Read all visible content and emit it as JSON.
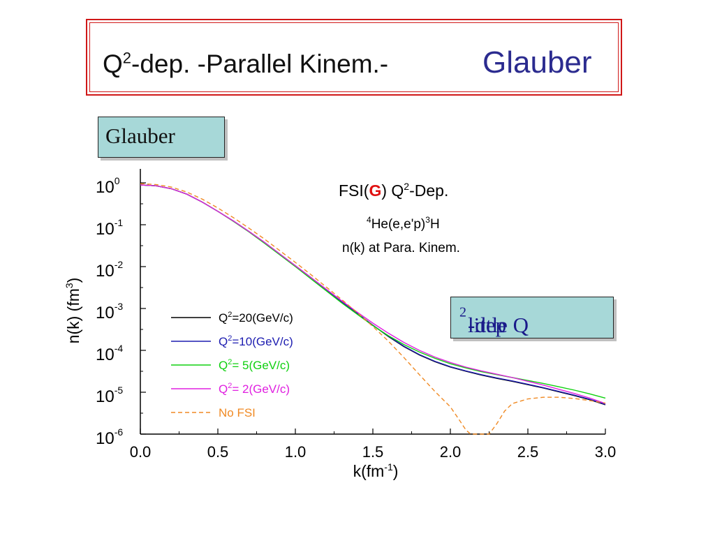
{
  "slide": {
    "title_prefix": "Q",
    "title_sup": "2",
    "title_rest": "-dep. -Parallel Kinem.-",
    "title_accent": "Glauber",
    "glauber_label": "Glauber",
    "qdep_label_pre": "little Q",
    "qdep_label_sup": "2",
    "qdep_label_post": "-dep",
    "colors": {
      "frame": "#d01818",
      "accent_text": "#2b2b8f",
      "label_fill": "#a7d8d8"
    }
  },
  "chart_data": {
    "type": "line",
    "annotation_line1_pre": "FSI(",
    "annotation_line1_G": "G",
    "annotation_line1_post_a": ") Q",
    "annotation_line1_sup": "2",
    "annotation_line1_post_b": "-Dep.",
    "annotation_line2_sup_a": "4",
    "annotation_line2_a": "He(e,e'p)",
    "annotation_line2_sup_b": "3",
    "annotation_line2_b": "H",
    "annotation_line3": "n(k) at Para. Kinem.",
    "xlabel_main": "k(fm",
    "xlabel_sup": "-1",
    "xlabel_close": ")",
    "ylabel_main": "n(k) (fm",
    "ylabel_sup": "3",
    "ylabel_close": ")",
    "xlim": [
      0,
      3
    ],
    "ylim_log10": [
      -6,
      0
    ],
    "y_scale": "log",
    "x_ticks": [
      "0.0",
      "0.5",
      "1.0",
      "1.5",
      "2.0",
      "2.5",
      "3.0"
    ],
    "y_ticks": [
      {
        "base": "10",
        "exp": "0"
      },
      {
        "base": "10",
        "exp": "-1"
      },
      {
        "base": "10",
        "exp": "-2"
      },
      {
        "base": "10",
        "exp": "-3"
      },
      {
        "base": "10",
        "exp": "-4"
      },
      {
        "base": "10",
        "exp": "-5"
      },
      {
        "base": "10",
        "exp": "-6"
      }
    ],
    "legend_position": "center-left",
    "series": [
      {
        "name_pre": "Q",
        "name_sup": "2",
        "name_post": "=20(GeV/c)",
        "color": "#000000",
        "dash": "solid",
        "x": [
          0,
          0.1,
          0.2,
          0.3,
          0.4,
          0.5,
          0.6,
          0.7,
          0.8,
          0.9,
          1.0,
          1.1,
          1.2,
          1.3,
          1.4,
          1.5,
          1.6,
          1.7,
          1.8,
          1.9,
          2.0,
          2.1,
          2.2,
          2.3,
          2.4,
          2.5,
          2.6,
          2.7,
          2.8,
          2.9,
          3.0
        ],
        "log10_y": [
          -0.05,
          -0.07,
          -0.14,
          -0.27,
          -0.46,
          -0.68,
          -0.91,
          -1.16,
          -1.42,
          -1.7,
          -1.98,
          -2.26,
          -2.55,
          -2.84,
          -3.12,
          -3.4,
          -3.67,
          -3.91,
          -4.11,
          -4.27,
          -4.4,
          -4.5,
          -4.59,
          -4.67,
          -4.74,
          -4.82,
          -4.9,
          -4.99,
          -5.08,
          -5.18,
          -5.3
        ]
      },
      {
        "name_pre": "Q",
        "name_sup": "2",
        "name_post": "=10(GeV/c)",
        "color": "#1c1cb0",
        "dash": "solid",
        "x": [
          0,
          0.1,
          0.2,
          0.3,
          0.4,
          0.5,
          0.6,
          0.7,
          0.8,
          0.9,
          1.0,
          1.1,
          1.2,
          1.3,
          1.4,
          1.5,
          1.6,
          1.7,
          1.8,
          1.9,
          2.0,
          2.1,
          2.2,
          2.3,
          2.4,
          2.5,
          2.6,
          2.7,
          2.8,
          2.9,
          3.0
        ],
        "log10_y": [
          -0.05,
          -0.07,
          -0.14,
          -0.27,
          -0.46,
          -0.68,
          -0.91,
          -1.16,
          -1.42,
          -1.7,
          -1.98,
          -2.26,
          -2.55,
          -2.84,
          -3.12,
          -3.4,
          -3.66,
          -3.9,
          -4.1,
          -4.26,
          -4.39,
          -4.49,
          -4.58,
          -4.66,
          -4.73,
          -4.81,
          -4.89,
          -4.98,
          -5.07,
          -5.17,
          -5.29
        ]
      },
      {
        "name_pre": "Q",
        "name_sup": "2",
        "name_post": "= 5(GeV/c)",
        "color": "#10d010",
        "dash": "solid",
        "x": [
          0,
          0.1,
          0.2,
          0.3,
          0.4,
          0.5,
          0.6,
          0.7,
          0.8,
          0.9,
          1.0,
          1.1,
          1.2,
          1.3,
          1.4,
          1.5,
          1.6,
          1.7,
          1.8,
          1.9,
          2.0,
          2.1,
          2.2,
          2.3,
          2.4,
          2.5,
          2.6,
          2.7,
          2.8,
          2.9,
          3.0
        ],
        "log10_y": [
          -0.05,
          -0.07,
          -0.14,
          -0.27,
          -0.46,
          -0.68,
          -0.92,
          -1.17,
          -1.44,
          -1.72,
          -2.0,
          -2.29,
          -2.58,
          -2.87,
          -3.14,
          -3.41,
          -3.65,
          -3.86,
          -4.04,
          -4.19,
          -4.32,
          -4.42,
          -4.51,
          -4.58,
          -4.65,
          -4.72,
          -4.79,
          -4.87,
          -4.95,
          -5.04,
          -5.14
        ]
      },
      {
        "name_pre": "Q",
        "name_sup": "2",
        "name_post": "= 2(GeV/c)",
        "color": "#e020e0",
        "dash": "solid",
        "x": [
          0,
          0.1,
          0.2,
          0.3,
          0.4,
          0.5,
          0.6,
          0.7,
          0.8,
          0.9,
          1.0,
          1.1,
          1.2,
          1.3,
          1.4,
          1.5,
          1.6,
          1.7,
          1.8,
          1.9,
          2.0,
          2.1,
          2.2,
          2.3,
          2.4,
          2.5,
          2.6,
          2.7,
          2.8,
          2.9,
          3.0
        ],
        "log10_y": [
          -0.05,
          -0.07,
          -0.14,
          -0.27,
          -0.46,
          -0.68,
          -0.91,
          -1.16,
          -1.42,
          -1.7,
          -1.98,
          -2.26,
          -2.54,
          -2.82,
          -3.09,
          -3.35,
          -3.59,
          -3.81,
          -4.0,
          -4.16,
          -4.29,
          -4.4,
          -4.49,
          -4.57,
          -4.65,
          -4.74,
          -4.83,
          -4.93,
          -5.03,
          -5.14,
          -5.27
        ]
      },
      {
        "name_pre": "",
        "name_sup": "",
        "name_post": "No FSI",
        "color": "#f08a24",
        "dash": "dashed",
        "x": [
          0,
          0.1,
          0.2,
          0.3,
          0.4,
          0.5,
          0.6,
          0.7,
          0.8,
          0.9,
          1.0,
          1.1,
          1.2,
          1.3,
          1.4,
          1.5,
          1.6,
          1.7,
          1.8,
          1.9,
          2.0,
          2.05,
          2.1,
          2.13,
          2.25,
          2.3,
          2.35,
          2.4,
          2.5,
          2.6,
          2.7,
          2.8,
          2.9,
          3.0
        ],
        "log10_y": [
          -0.02,
          -0.04,
          -0.1,
          -0.22,
          -0.39,
          -0.6,
          -0.83,
          -1.08,
          -1.34,
          -1.62,
          -1.9,
          -2.19,
          -2.49,
          -2.79,
          -3.1,
          -3.43,
          -3.78,
          -4.17,
          -4.58,
          -4.98,
          -5.35,
          -5.62,
          -5.9,
          -6.0,
          -6.0,
          -5.75,
          -5.45,
          -5.27,
          -5.16,
          -5.12,
          -5.12,
          -5.15,
          -5.2,
          -5.26
        ]
      }
    ]
  }
}
